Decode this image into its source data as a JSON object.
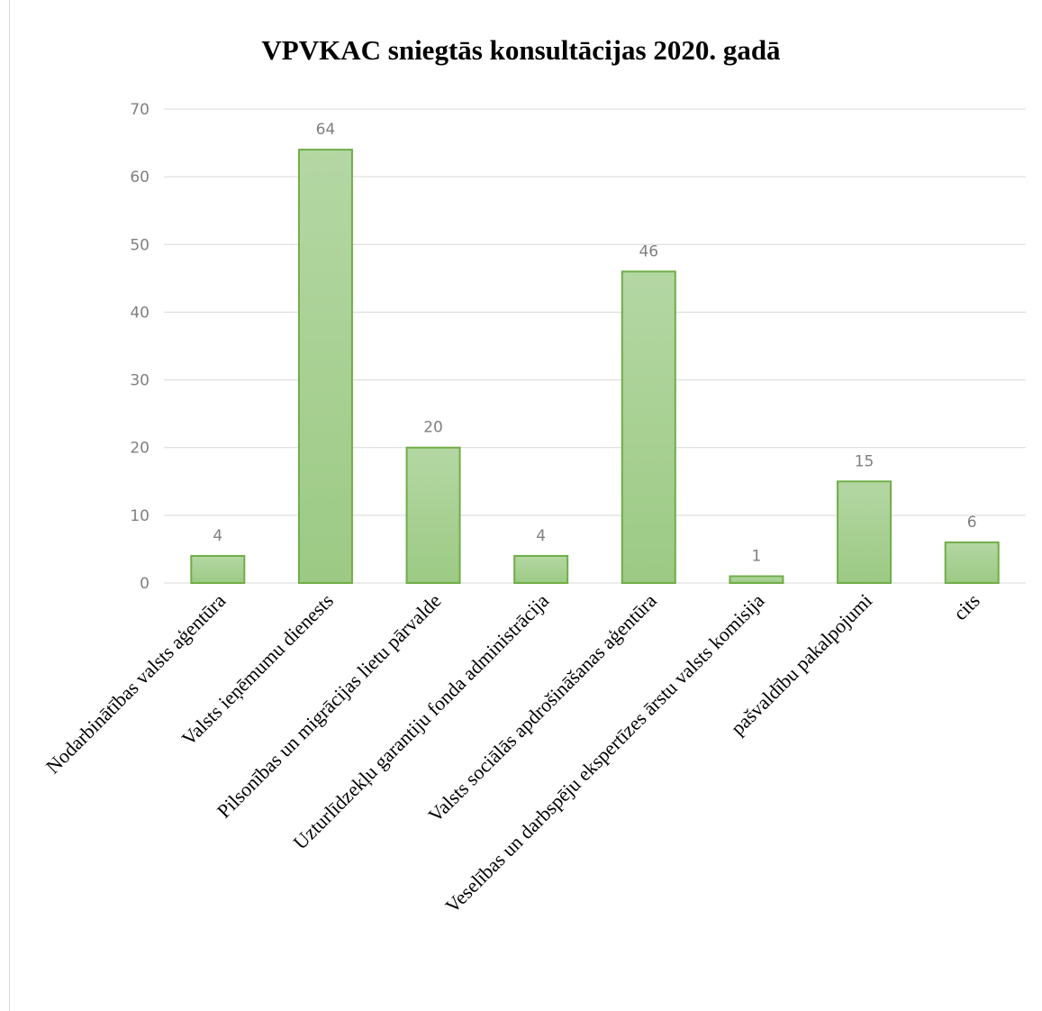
{
  "chart_data": {
    "type": "bar",
    "title": "VPVKAC sniegtās konsultācijas 2020. gadā",
    "xlabel": "",
    "ylabel": "",
    "categories": [
      "Nodarbinātības valsts aģentūra",
      "Valsts ieņēmumu dienests",
      "Pilsonības un migrācijas lietu pārvalde",
      "Uzturlīdzekļu garantiju fonda administrācija",
      "Valsts sociālās apdrošināšanas aģentūra",
      "Veselības un darbspēju ekspertīzes ārstu valsts komisija",
      "pašvaldību pakalpojumi",
      "cits"
    ],
    "values": [
      4,
      64,
      20,
      4,
      46,
      1,
      15,
      6
    ],
    "ylim": [
      0,
      70
    ],
    "yticks": [
      0,
      10,
      20,
      30,
      40,
      50,
      60,
      70
    ],
    "grid": true,
    "legend": "none",
    "colors": {
      "bar_fill_top": "#b4d7a3",
      "bar_fill_bottom": "#9cca84",
      "bar_stroke": "#70ad47",
      "gridline": "#d9d9d9",
      "label": "#7f7f7f"
    }
  }
}
